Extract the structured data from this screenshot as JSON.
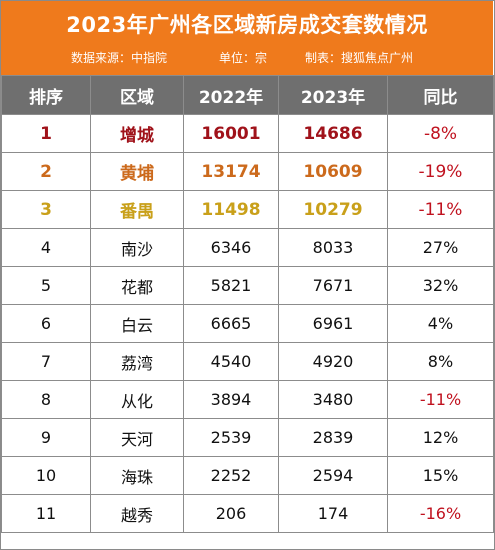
{
  "header": {
    "title": "2023年广州各区域新房成交套数情况",
    "source": "数据来源：中指院",
    "unit": "单位：宗",
    "maker": "制表：搜狐焦点广州"
  },
  "table": {
    "columns": [
      "排序",
      "区域",
      "2022年",
      "2023年",
      "同比"
    ],
    "rows": [
      {
        "rank": "1",
        "district": "增城",
        "y2022": "16001",
        "y2023": "14686",
        "change": "-8%"
      },
      {
        "rank": "2",
        "district": "黄埔",
        "y2022": "13174",
        "y2023": "10609",
        "change": "-19%"
      },
      {
        "rank": "3",
        "district": "番禺",
        "y2022": "11498",
        "y2023": "10279",
        "change": "-11%"
      },
      {
        "rank": "4",
        "district": "南沙",
        "y2022": "6346",
        "y2023": "8033",
        "change": "27%"
      },
      {
        "rank": "5",
        "district": "花都",
        "y2022": "5821",
        "y2023": "7671",
        "change": "32%"
      },
      {
        "rank": "6",
        "district": "白云",
        "y2022": "6665",
        "y2023": "6961",
        "change": "4%"
      },
      {
        "rank": "7",
        "district": "荔湾",
        "y2022": "4540",
        "y2023": "4920",
        "change": "8%"
      },
      {
        "rank": "8",
        "district": "从化",
        "y2022": "3894",
        "y2023": "3480",
        "change": "-11%"
      },
      {
        "rank": "9",
        "district": "天河",
        "y2022": "2539",
        "y2023": "2839",
        "change": "12%"
      },
      {
        "rank": "10",
        "district": "海珠",
        "y2022": "2252",
        "y2023": "2594",
        "change": "15%"
      },
      {
        "rank": "11",
        "district": "越秀",
        "y2022": "206",
        "y2023": "174",
        "change": "-16%"
      }
    ]
  },
  "colors": {
    "header_bg": "#ef7a1c",
    "column_header_bg": "#6f6f6f",
    "rank1": "#a0121a",
    "rank2": "#cc6a1c",
    "rank3": "#c9a01a",
    "negative_change": "#c0121f"
  }
}
